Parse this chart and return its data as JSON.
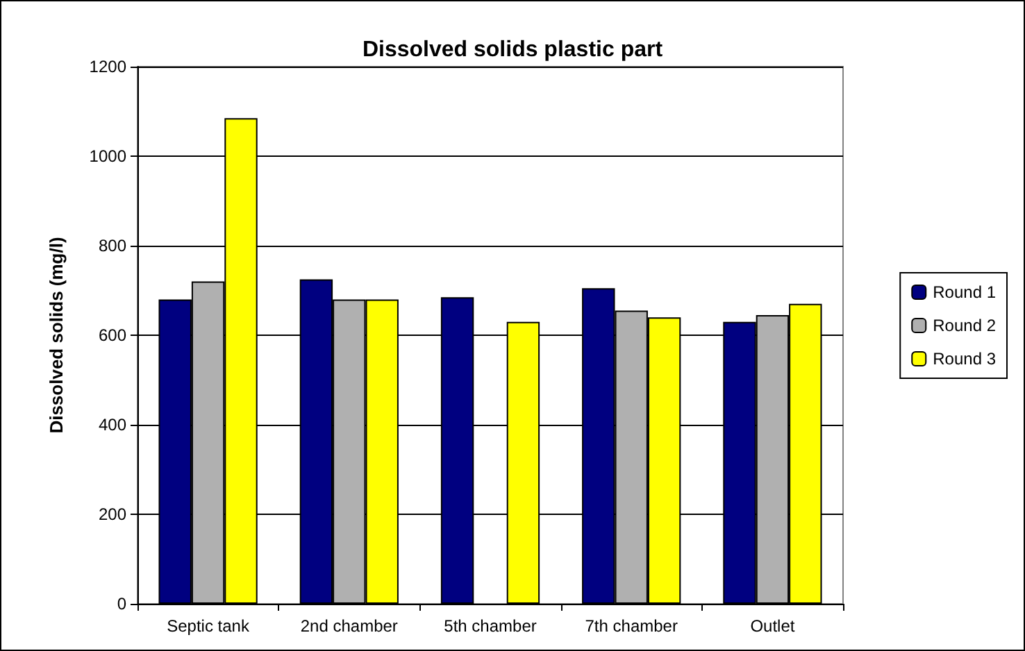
{
  "chart_data": {
    "type": "bar",
    "title": "Dissolved solids plastic part",
    "ylabel": "Dissolved solids (mg/l)",
    "categories": [
      "Septic tank",
      "2nd chamber",
      "5th chamber",
      "7th chamber",
      "Outlet"
    ],
    "series": [
      {
        "name": "Round 1",
        "color": "#000080",
        "values": [
          680,
          725,
          685,
          705,
          630
        ]
      },
      {
        "name": "Round 2",
        "color": "#b0b0b0",
        "values": [
          720,
          680,
          null,
          655,
          645
        ]
      },
      {
        "name": "Round 3",
        "color": "#ffff00",
        "values": [
          1085,
          680,
          630,
          640,
          670
        ]
      }
    ],
    "ylim": [
      0,
      1200
    ],
    "yticks": [
      0,
      200,
      400,
      600,
      800,
      1000,
      1200
    ],
    "grid": "y",
    "legend": "right"
  }
}
